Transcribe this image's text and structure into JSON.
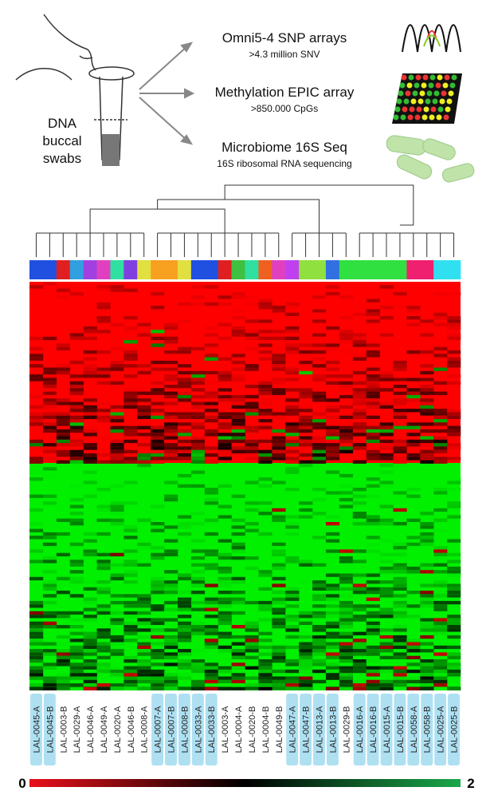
{
  "header": {
    "source": [
      "DNA",
      "buccal",
      "swabs"
    ],
    "assays": [
      {
        "title": "Omni5-4 SNP arrays",
        "subtitle": ">4.3 million SNV"
      },
      {
        "title": "Methylation EPIC array",
        "subtitle": ">850.000 CpGs"
      },
      {
        "title": "Microbiome 16S Seq",
        "subtitle": "16S ribosomal RNA sequencing"
      }
    ]
  },
  "heatmap": {
    "samples": [
      "LAL-0045-A",
      "LAL-0045-B",
      "LAL-0003-B",
      "LAL-0029-A",
      "LAL-0046-A",
      "LAL-0049-A",
      "LAL-0020-A",
      "LAL-0046-B",
      "LAL-0008-A",
      "LAL-0007-A",
      "LAL-0007-B",
      "LAL-0008-B",
      "LAL-0033-A",
      "LAL-0033-B",
      "LAL-0003-A",
      "LAL-0004-A",
      "LAL-0020-B",
      "LAL-0004-B",
      "LAL-0049-B",
      "LAL-0047-A",
      "LAL-0047-B",
      "LAL-0013-A",
      "LAL-0013-B",
      "LAL-0029-B",
      "LAL-0016-A",
      "LAL-0016-B",
      "LAL-0015-A",
      "LAL-0015-B",
      "LAL-0058-A",
      "LAL-0058-B",
      "LAL-0025-A",
      "LAL-0025-B"
    ],
    "highlighted": [
      true,
      true,
      false,
      false,
      false,
      false,
      false,
      false,
      false,
      true,
      true,
      true,
      true,
      true,
      false,
      false,
      false,
      false,
      false,
      true,
      true,
      true,
      true,
      false,
      true,
      true,
      true,
      true,
      true,
      true,
      true,
      true
    ],
    "scale_min": 0,
    "scale_max": 2
  }
}
